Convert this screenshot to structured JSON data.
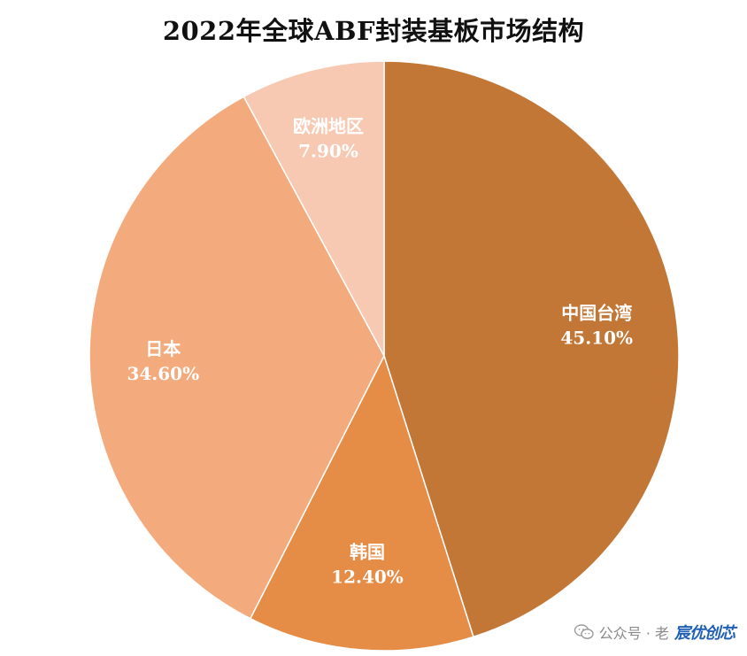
{
  "chart_data": {
    "type": "pie",
    "title": "2022年全球ABF封装基板市场结构",
    "slices": [
      {
        "label": "中国台湾",
        "value": 45.1,
        "value_label": "45.10%",
        "color": "#C27736"
      },
      {
        "label": "韩国",
        "value": 12.4,
        "value_label": "12.40%",
        "color": "#E58C46"
      },
      {
        "label": "日本",
        "value": 34.6,
        "value_label": "34.60%",
        "color": "#F3AA7C"
      },
      {
        "label": "欧洲地区",
        "value": 7.9,
        "value_label": "7.90%",
        "color": "#F8C9B2"
      }
    ],
    "start_angle": "12 o'clock",
    "direction": "clockwise",
    "legend": "none"
  },
  "watermark": {
    "text": "公众号 · 老",
    "logo_text": "宸优创芯"
  }
}
